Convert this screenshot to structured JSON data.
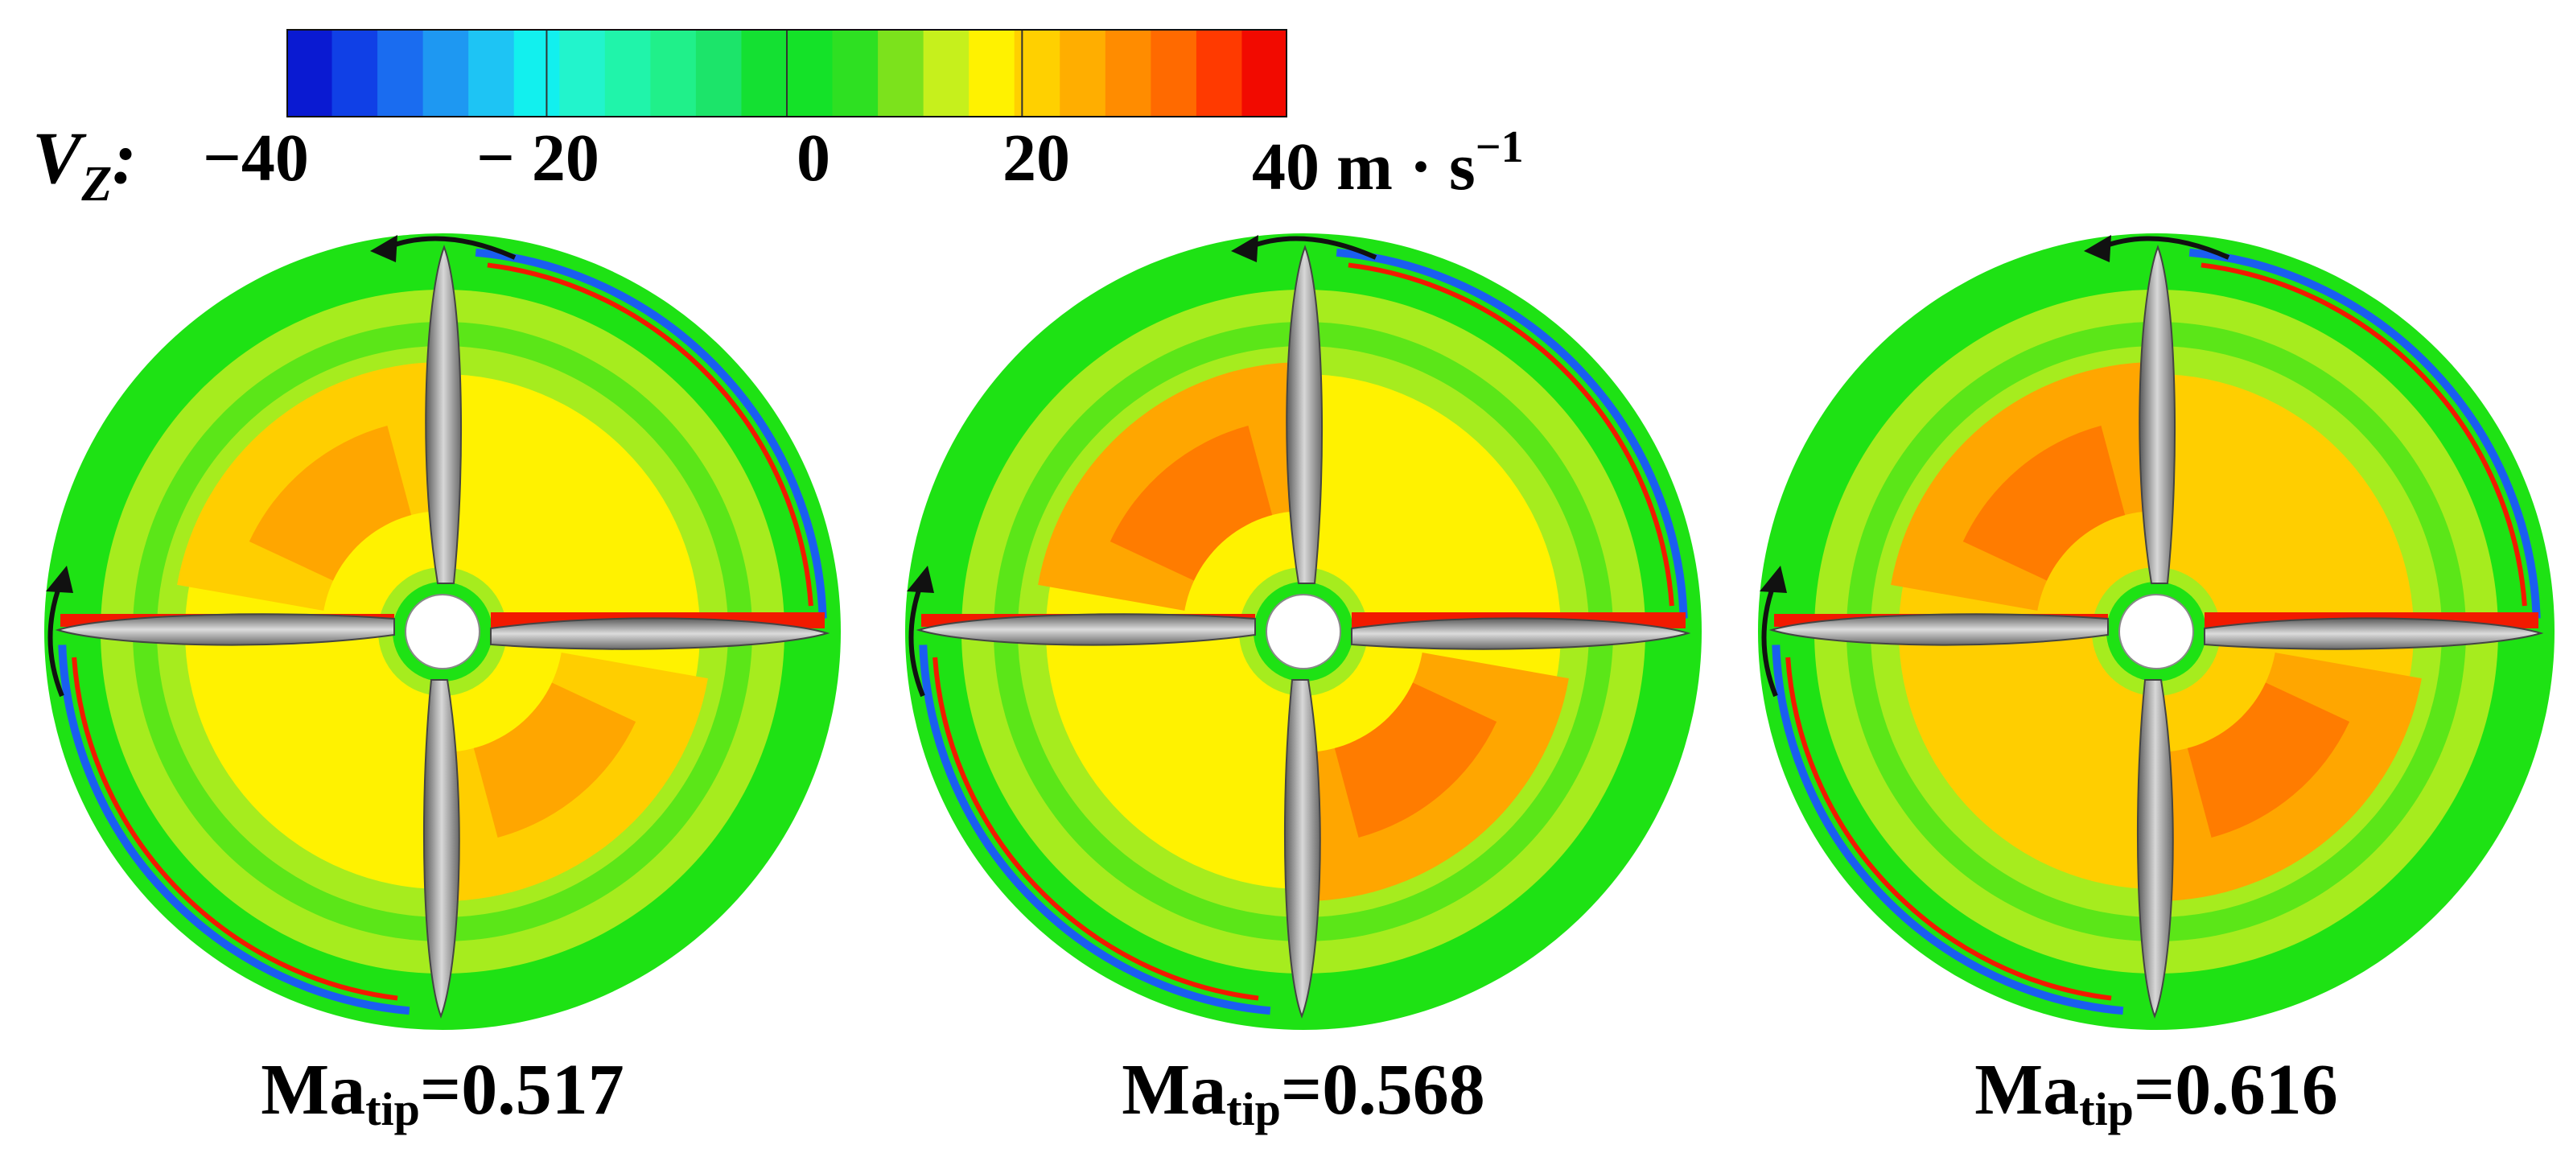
{
  "colorbar": {
    "symbol": "V",
    "symbol_sub": "Z",
    "colon": ":",
    "ticks": [
      "−40",
      "− 20",
      "0",
      "20",
      "40"
    ],
    "unit_main": "m · s",
    "unit_sup": "−1",
    "colors": [
      "#0a1ad2",
      "#1040e6",
      "#1a6cf0",
      "#1e98f2",
      "#1ec4f4",
      "#12f0ee",
      "#22f4cc",
      "#20f4aa",
      "#20f08a",
      "#1ce46a",
      "#14e032",
      "#14e228",
      "#2ee022",
      "#7ce21c",
      "#c6f01c",
      "#fff200",
      "#ffd000",
      "#ffae00",
      "#ff8c00",
      "#ff6a00",
      "#ff3a00",
      "#f20a00"
    ]
  },
  "panels": [
    {
      "label_main": "Ma",
      "label_sub": "tip",
      "label_value": "=0.517"
    },
    {
      "label_main": "Ma",
      "label_sub": "tip",
      "label_value": "=0.568"
    },
    {
      "label_main": "Ma",
      "label_sub": "tip",
      "label_value": "=0.616"
    }
  ]
}
